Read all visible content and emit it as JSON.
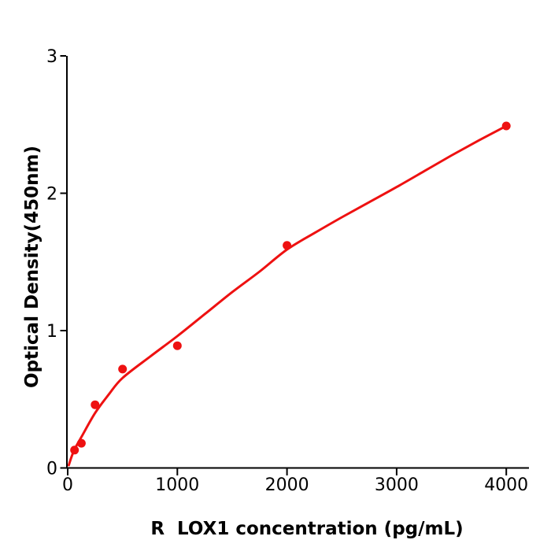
{
  "chart_data": {
    "type": "scatter",
    "title": "",
    "xlabel": "R  LOX1 concentration (pg/mL)",
    "ylabel": "Optical Density(450nm)",
    "x": [
      62.5,
      125,
      250,
      500,
      1000,
      2000,
      4000
    ],
    "y": [
      0.13,
      0.18,
      0.46,
      0.72,
      0.89,
      1.62,
      2.49
    ],
    "xticks": [
      0,
      1000,
      2000,
      3000,
      4000
    ],
    "yticks": [
      0,
      1,
      2,
      3
    ],
    "xlim": [
      0,
      4200
    ],
    "ylim": [
      0,
      3
    ],
    "grid": false,
    "legend": "none",
    "marker_color": "#ee1111",
    "line_color": "#ee1111",
    "axis_color": "#000000",
    "fit_curve_points": {
      "x": [
        10,
        30,
        62.5,
        125,
        250,
        375,
        500,
        750,
        1000,
        1250,
        1500,
        1750,
        2000,
        2250,
        2500,
        2750,
        3000,
        3250,
        3500,
        3750,
        4000
      ],
      "y": [
        0.02,
        0.07,
        0.135,
        0.225,
        0.4,
        0.535,
        0.655,
        0.81,
        0.96,
        1.12,
        1.28,
        1.43,
        1.59,
        1.71,
        1.825,
        1.935,
        2.045,
        2.16,
        2.275,
        2.385,
        2.49
      ]
    }
  }
}
